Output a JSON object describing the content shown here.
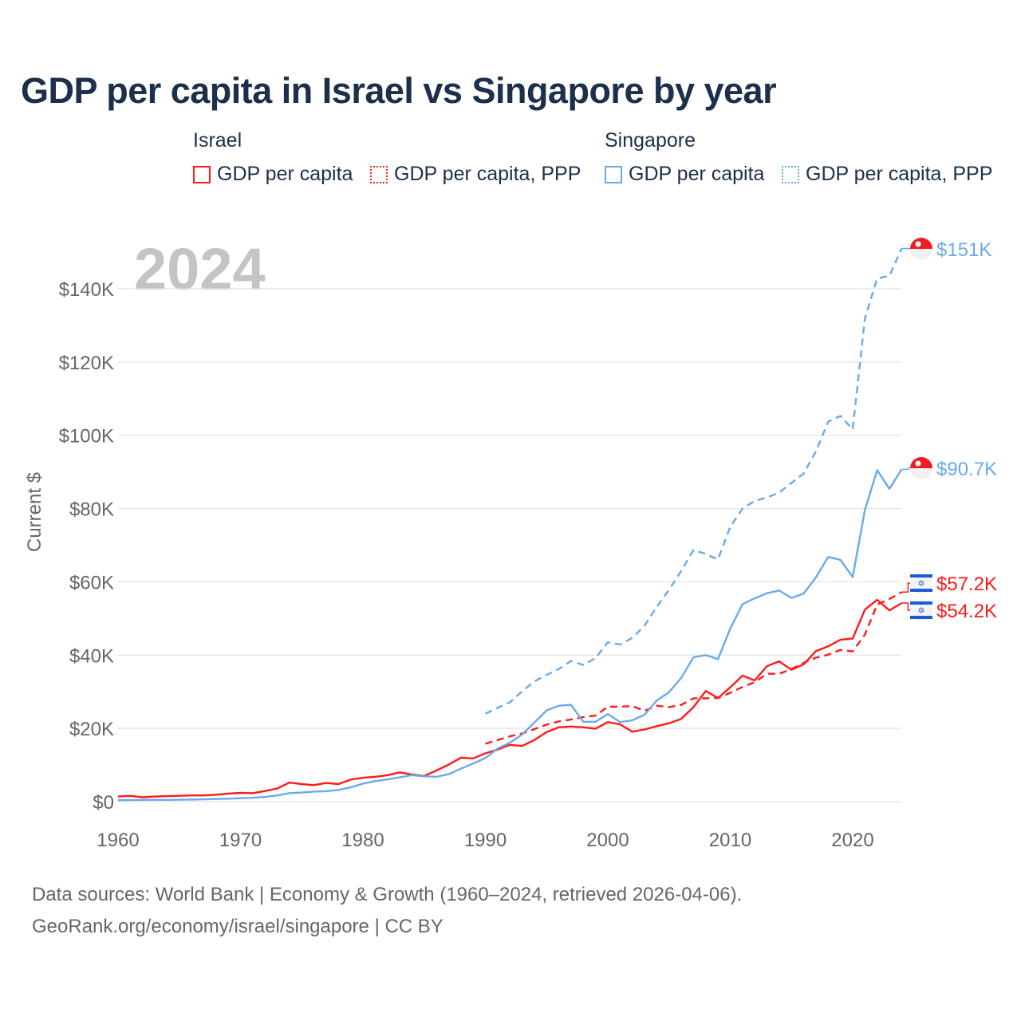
{
  "title": "GDP per capita in Israel vs Singapore by year",
  "legend": {
    "groups": [
      {
        "name": "Israel",
        "items": [
          "GDP per capita",
          "GDP per capita, PPP"
        ]
      },
      {
        "name": "Singapore",
        "items": [
          "GDP per capita",
          "GDP per capita, PPP"
        ]
      }
    ]
  },
  "year_watermark": "2024",
  "source_line1": "Data sources: World Bank | Economy & Growth (1960–2024, retrieved 2026-04-06).",
  "source_line2": "GeoRank.org/economy/israel/singapore | CC BY",
  "colors": {
    "israel": "#ff1a1a",
    "singapore": "#6aaaea",
    "title": "#1c2f4b"
  },
  "chart_data": {
    "type": "line",
    "title": "GDP per capita in Israel vs Singapore by year",
    "xlabel": "",
    "ylabel": "Current $",
    "xlim": [
      1960,
      2024
    ],
    "ylim": [
      0,
      150000
    ],
    "x_ticks": [
      "1960",
      "1970",
      "1980",
      "1990",
      "2000",
      "2010",
      "2020"
    ],
    "y_ticks": [
      "$0",
      "$20K",
      "$40K",
      "$60K",
      "$80K",
      "$100K",
      "$120K",
      "$140K"
    ],
    "grid": true,
    "legend": "top",
    "series": [
      {
        "name": "Israel GDP per capita",
        "country": "israel",
        "dash": false,
        "start": 1960,
        "end_label": "$54.2K",
        "values": [
          1.4,
          1.6,
          1.2,
          1.4,
          1.5,
          1.6,
          1.7,
          1.7,
          1.9,
          2.2,
          2.4,
          2.3,
          2.9,
          3.6,
          5.2,
          4.8,
          4.5,
          5.1,
          4.8,
          6.0,
          6.5,
          6.8,
          7.2,
          8.0,
          7.4,
          7.0,
          8.5,
          10.1,
          12.0,
          11.8,
          13.2,
          14.2,
          15.5,
          15.2,
          16.8,
          19.0,
          20.3,
          20.5,
          20.3,
          19.9,
          21.7,
          21.1,
          19.1,
          19.7,
          20.6,
          21.4,
          22.6,
          25.8,
          30.2,
          28.3,
          31.2,
          34.4,
          33.1,
          37.0,
          38.3,
          36.0,
          37.5,
          41.1,
          42.4,
          44.2,
          44.5,
          52.4,
          55.1,
          52.2,
          54.2
        ]
      },
      {
        "name": "Israel GDP per capita, PPP",
        "country": "israel",
        "dash": true,
        "start": 1990,
        "end_label": "$57.2K",
        "values": [
          15.8,
          16.8,
          17.8,
          18.6,
          19.8,
          21.0,
          21.9,
          22.4,
          23.1,
          23.5,
          25.9,
          25.9,
          26.1,
          24.8,
          26.2,
          25.8,
          26.4,
          28.2,
          28.2,
          28.3,
          29.7,
          31.3,
          32.6,
          34.9,
          34.9,
          36.2,
          37.9,
          39.3,
          40.1,
          41.4,
          41.0,
          45.6,
          53.8,
          55.3,
          57.2
        ]
      },
      {
        "name": "Singapore GDP per capita",
        "country": "singapore",
        "dash": false,
        "start": 1960,
        "end_label": "$90.7K",
        "values": [
          0.43,
          0.45,
          0.47,
          0.5,
          0.48,
          0.52,
          0.57,
          0.63,
          0.71,
          0.81,
          0.93,
          1.07,
          1.27,
          1.69,
          2.34,
          2.49,
          2.75,
          2.85,
          3.19,
          3.9,
          4.93,
          5.6,
          6.08,
          6.63,
          7.23,
          6.9,
          6.8,
          7.5,
          9.0,
          10.4,
          11.9,
          14.5,
          16.1,
          18.3,
          21.6,
          24.9,
          26.2,
          26.4,
          21.8,
          21.8,
          23.9,
          21.7,
          22.2,
          23.7,
          27.6,
          29.9,
          33.8,
          39.4,
          40.0,
          38.9,
          47.2,
          53.9,
          55.5,
          56.9,
          57.6,
          55.6,
          56.8,
          61.2,
          66.8,
          66.0,
          61.3,
          79.6,
          90.5,
          85.4,
          90.7
        ]
      },
      {
        "name": "Singapore GDP per capita, PPP",
        "country": "singapore",
        "dash": true,
        "start": 1990,
        "end_label": "$151K",
        "values": [
          24.0,
          25.6,
          27.1,
          30.1,
          32.8,
          34.6,
          36.2,
          38.4,
          37.3,
          39.2,
          43.5,
          42.9,
          44.7,
          48.0,
          53.2,
          57.8,
          63.0,
          68.7,
          67.6,
          66.1,
          75.0,
          80.0,
          82.1,
          83.0,
          84.4,
          87.0,
          89.6,
          95.6,
          103.7,
          105.3,
          101.6,
          131.9,
          142.8,
          143.5,
          151.0
        ]
      }
    ],
    "units_note": "values in thousands of current US$"
  }
}
